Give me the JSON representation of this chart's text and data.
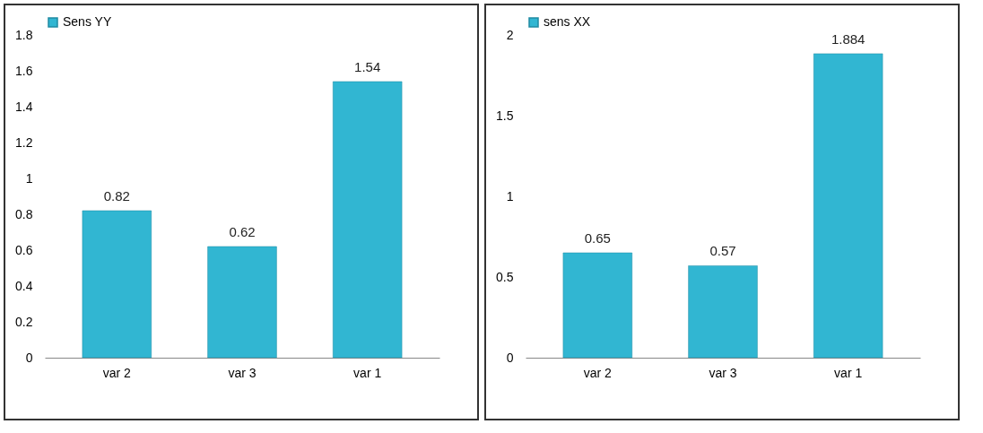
{
  "chart_data": [
    {
      "type": "bar",
      "categories": [
        "var 2",
        "var 3",
        "var 1"
      ],
      "series": [
        {
          "name": "Sens YY",
          "color": "#31b6d2",
          "values": [
            0.82,
            0.62,
            1.54
          ]
        }
      ],
      "ylim": [
        0,
        1.8
      ],
      "yticks": [
        0,
        0.2,
        0.4,
        0.6,
        0.8,
        1,
        1.2,
        1.4,
        1.6,
        1.8
      ],
      "data_labels": true,
      "legend": "top",
      "grid": false
    },
    {
      "type": "bar",
      "categories": [
        "var 2",
        "var 3",
        "var 1"
      ],
      "series": [
        {
          "name": "sens XX",
          "color": "#31b6d2",
          "values": [
            0.65,
            0.57,
            1.884
          ]
        }
      ],
      "ylim": [
        0,
        2
      ],
      "yticks": [
        0,
        0.5,
        1,
        1.5,
        2
      ],
      "data_labels": true,
      "legend": "top",
      "grid": false
    }
  ]
}
